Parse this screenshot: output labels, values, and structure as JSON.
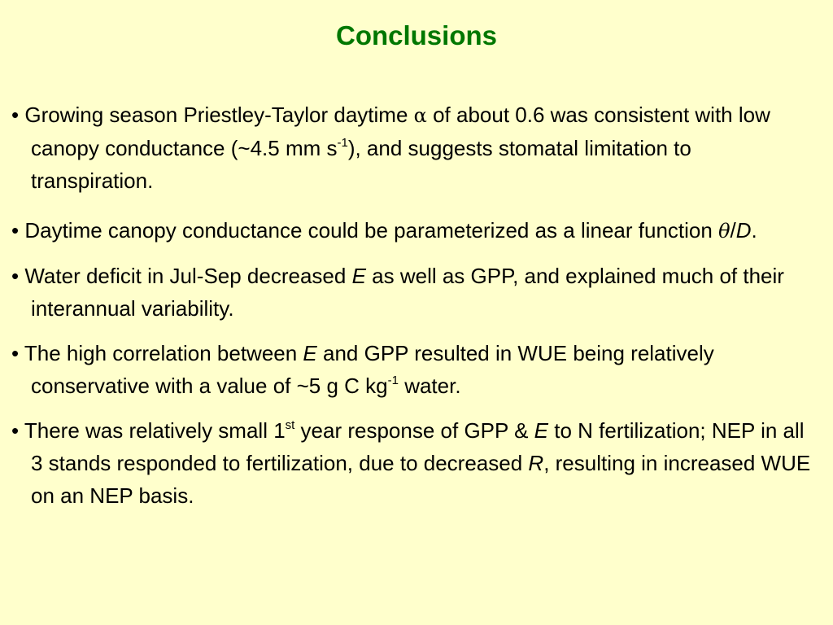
{
  "slide": {
    "title": "Conclusions",
    "bullet_marker": "•",
    "bullet1": {
      "a": "Growing season Priestley-Taylor daytime ",
      "alpha": "α",
      "b": " of about 0.6 was consistent with low canopy conductance (~4.5 mm s",
      "sup": "-1",
      "c": "), and suggests stomatal limitation to transpiration."
    },
    "bullet2": {
      "a": "Daytime canopy conductance could be parameterized as a linear function ",
      "theta": "θ",
      "slash": "/",
      "d": "D",
      "end": "."
    },
    "bullet3": {
      "a": "Water deficit in Jul-Sep decreased ",
      "e": "E",
      "b": " as well as GPP, and explained much of their interannual variability."
    },
    "bullet4": {
      "a": "The high correlation between ",
      "e": "E",
      "b": " and GPP resulted in WUE being relatively conservative with a value of ~5 g C kg",
      "sup": "-1",
      "c": " water."
    },
    "bullet5": {
      "a": "There was relatively small 1",
      "sup": "st",
      "b": " year response of GPP & ",
      "e": "E",
      "c": " to N fertilization; NEP in all 3 stands responded to fertilization, due to decreased ",
      "r": "R",
      "d": ", resulting in increased WUE on an NEP basis."
    }
  }
}
